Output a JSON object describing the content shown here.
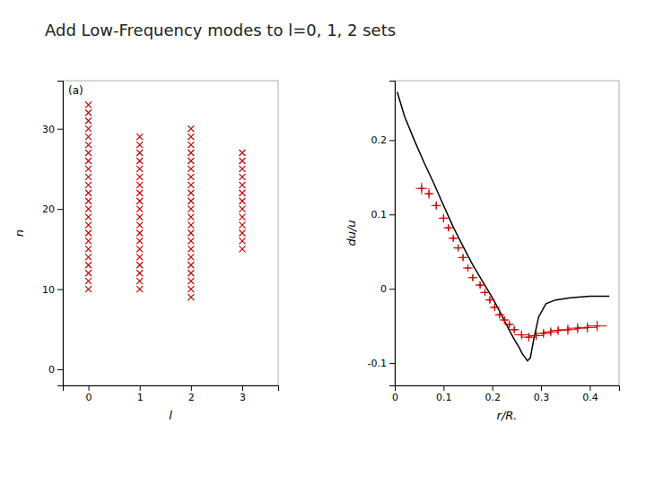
{
  "chart_data": [
    {
      "type": "scatter",
      "title": "Add Low-Frequency modes to l=0, 1, 2 sets",
      "xlabel": "l",
      "ylabel": "n",
      "annotations": [
        "(a)"
      ],
      "xlim": [
        -0.5,
        3.7
      ],
      "ylim": [
        -2,
        36
      ],
      "xticks": [
        0,
        1,
        2,
        3
      ],
      "yticks": [
        0,
        10,
        20,
        30
      ],
      "grid": false,
      "series": [
        {
          "color": "#cc0000",
          "marker": "x",
          "x": [
            0,
            0,
            0,
            0,
            0,
            0,
            0,
            0,
            0,
            0,
            0,
            0,
            0,
            0,
            0,
            0,
            0,
            0,
            0,
            0,
            0,
            0,
            0,
            0
          ],
          "values": [
            10,
            11,
            12,
            13,
            14,
            15,
            16,
            17,
            18,
            19,
            20,
            21,
            22,
            23,
            24,
            25,
            26,
            27,
            28,
            29,
            30,
            31,
            32,
            33
          ]
        },
        {
          "color": "#cc0000",
          "marker": "x",
          "x": [
            1,
            1,
            1,
            1,
            1,
            1,
            1,
            1,
            1,
            1,
            1,
            1,
            1,
            1,
            1,
            1,
            1,
            1,
            1,
            1
          ],
          "values": [
            10,
            11,
            12,
            13,
            14,
            15,
            16,
            17,
            18,
            19,
            20,
            21,
            22,
            23,
            24,
            25,
            26,
            27,
            28,
            29
          ]
        },
        {
          "color": "#cc0000",
          "marker": "x",
          "x": [
            2,
            2,
            2,
            2,
            2,
            2,
            2,
            2,
            2,
            2,
            2,
            2,
            2,
            2,
            2,
            2,
            2,
            2,
            2,
            2,
            2,
            2
          ],
          "values": [
            9,
            10,
            11,
            12,
            13,
            14,
            15,
            16,
            17,
            18,
            19,
            20,
            21,
            22,
            23,
            24,
            25,
            26,
            27,
            28,
            29,
            30
          ]
        },
        {
          "color": "#cc0000",
          "marker": "x",
          "x": [
            3,
            3,
            3,
            3,
            3,
            3,
            3,
            3,
            3,
            3,
            3,
            3,
            3
          ],
          "values": [
            15,
            16,
            17,
            18,
            19,
            20,
            21,
            22,
            23,
            24,
            25,
            26,
            27
          ]
        }
      ]
    },
    {
      "type": "line",
      "xlabel": "r/R.",
      "ylabel": "du/u",
      "xlim": [
        0,
        0.46
      ],
      "ylim": [
        -0.13,
        0.28
      ],
      "xticks": [
        0,
        0.1,
        0.2,
        0.3,
        0.4
      ],
      "yticks": [
        -0.1,
        0,
        0.1,
        0.2
      ],
      "grid": false,
      "series": [
        {
          "type": "line",
          "color": "#000000",
          "x": [
            0.005,
            0.02,
            0.04,
            0.06,
            0.08,
            0.1,
            0.12,
            0.14,
            0.16,
            0.18,
            0.2,
            0.215,
            0.225,
            0.235,
            0.245,
            0.255,
            0.262,
            0.268,
            0.272,
            0.278,
            0.285,
            0.295,
            0.31,
            0.33,
            0.36,
            0.4,
            0.44
          ],
          "values": [
            0.265,
            0.232,
            0.2,
            0.17,
            0.142,
            0.112,
            0.083,
            0.057,
            0.032,
            0.01,
            -0.012,
            -0.03,
            -0.043,
            -0.056,
            -0.068,
            -0.079,
            -0.088,
            -0.093,
            -0.097,
            -0.093,
            -0.068,
            -0.038,
            -0.02,
            -0.015,
            -0.012,
            -0.01,
            -0.01
          ]
        },
        {
          "type": "scatter",
          "color": "#cc0000",
          "marker": "plus",
          "x": [
            0.055,
            0.07,
            0.085,
            0.1,
            0.11,
            0.12,
            0.13,
            0.14,
            0.15,
            0.16,
            0.175,
            0.185,
            0.195,
            0.205,
            0.215,
            0.225,
            0.235,
            0.245,
            0.26,
            0.275,
            0.29,
            0.305,
            0.32,
            0.335,
            0.355,
            0.375,
            0.395,
            0.415
          ],
          "values": [
            0.135,
            0.128,
            0.112,
            0.095,
            0.082,
            0.068,
            0.055,
            0.042,
            0.028,
            0.015,
            0.005,
            -0.005,
            -0.015,
            -0.025,
            -0.035,
            -0.042,
            -0.048,
            -0.055,
            -0.062,
            -0.065,
            -0.063,
            -0.06,
            -0.058,
            -0.056,
            -0.055,
            -0.053,
            -0.052,
            -0.05
          ],
          "xerr": [
            0.012,
            0.01,
            0.01,
            0.01,
            0.01,
            0.01,
            0.01,
            0.01,
            0.01,
            0.01,
            0.01,
            0.01,
            0.01,
            0.01,
            0.01,
            0.01,
            0.01,
            0.01,
            0.015,
            0.015,
            0.015,
            0.015,
            0.015,
            0.015,
            0.02,
            0.02,
            0.02,
            0.02
          ],
          "yerr": [
            0.008,
            0.007,
            0.006,
            0.006,
            0.005,
            0.005,
            0.005,
            0.005,
            0.005,
            0.005,
            0.005,
            0.005,
            0.005,
            0.005,
            0.005,
            0.005,
            0.005,
            0.005,
            0.006,
            0.006,
            0.006,
            0.006,
            0.006,
            0.006,
            0.007,
            0.007,
            0.007,
            0.007
          ]
        }
      ]
    }
  ]
}
